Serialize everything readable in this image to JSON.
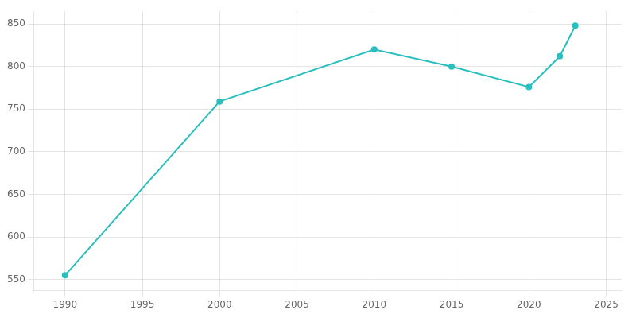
{
  "chart_data": {
    "type": "line",
    "x": [
      1990,
      2000,
      2010,
      2015,
      2020,
      2022,
      2023
    ],
    "values": [
      555,
      759,
      820,
      800,
      776,
      812,
      848
    ],
    "color": "#2ABFBF",
    "marker": "circle",
    "xlim": [
      1988,
      2026
    ],
    "ylim": [
      537,
      865
    ],
    "xticks": [
      1990,
      1995,
      2000,
      2005,
      2010,
      2015,
      2020,
      2025
    ],
    "yticks": [
      550,
      600,
      650,
      700,
      750,
      800,
      850
    ],
    "grid": true
  }
}
